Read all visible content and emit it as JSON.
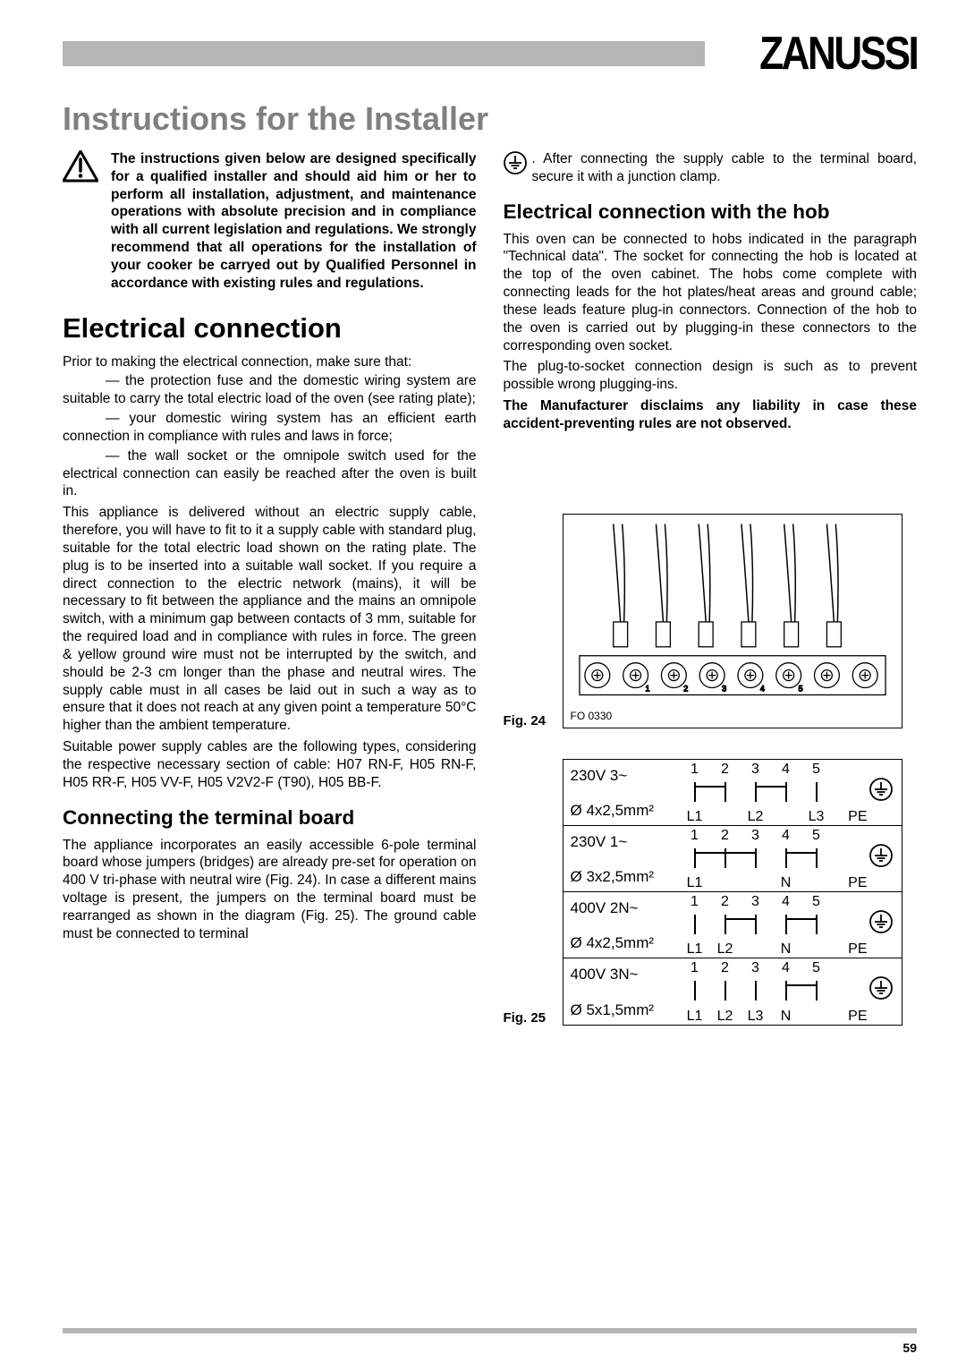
{
  "brand": "ZANUSSI",
  "main_title": "Instructions for the Installer",
  "warning_text": "The instructions given below are designed specifically for a qualified installer and should aid him or her to perform all installation, adjustment, and maintenance operations with absolute precision and in compliance with all current legislation and regulations. We strongly recommend that all operations for the installation of your cooker be carryed out by Qualified Personnel in accordance with existing rules and regulations.",
  "sec_elec_conn": "Electrical connection",
  "p_prior": "Prior to making the electrical connection, make sure that:",
  "p_fuse": "—   the protection fuse and the domestic wiring system are suitable to carry the total electric load of the oven (see rating plate);",
  "p_earth": "—   your domestic wiring system has an efficient earth connection in compliance with rules and laws in force;",
  "p_socket": "—   the wall socket or the omnipole switch used for the electrical connection can easily be reached after the oven is built in.",
  "p_appliance": "This appliance is delivered without an electric supply cable, therefore, you will have to fit to it a supply cable with standard plug, suitable for the total electric load shown on the rating plate. The plug is to be inserted into a suitable wall socket. If you require a direct connection to the electric network (mains), it will be necessary to fit between the appliance and the mains an omnipole switch, with a minimum gap between contacts of 3 mm, suitable for the required load and in compliance with rules in force. The green & yellow ground wire must not be interrupted by the switch, and should be 2-3 cm longer than the phase and neutral wires. The supply cable must in all cases be laid out in such a way as to ensure that it does not reach at any given point a temperature 50°C higher than the ambient temperature.",
  "p_cables": "Suitable power supply cables are the following types, considering the respective necessary section of cable: H07 RN-F, H05 RN-F, H05 RR-F, H05 VV-F, H05 V2V2-F (T90), H05 BB-F.",
  "sub_terminal": "Connecting the terminal board",
  "p_terminal": "The appliance incorporates an easily accessible 6-pole terminal board whose jumpers (bridges) are already pre-set for operation on 400 V tri-phase with neutral wire (Fig. 24). In case a different mains voltage is present, the jumpers on the terminal board must be rearranged as shown in the diagram (Fig. 25). The ground cable must be connected to terminal",
  "p_ground_after": ". After connecting the supply cable to the terminal board, secure it with a junction clamp.",
  "sub_hob": "Electrical connection with the hob",
  "p_hob1": "This oven can be connected to hobs indicated in the paragraph \"Technical data\". The socket for connecting the hob is located at the top of the oven cabinet. The hobs come complete with connecting leads for the hot plates/heat areas and ground cable; these leads feature plug-in connectors. Connection of the hob to the oven is carried out by plugging-in these connectors to the corresponding oven socket.",
  "p_hob2": "The plug-to-socket connection design is such as to prevent possible wrong plugging-ins.",
  "p_disclaim": "The Manufacturer disclaims any liability in case these accident-preventing rules are not observed.",
  "fig24_label": "Fig. 24",
  "fig24_caption": "FO 0330",
  "fig25_label": "Fig. 25",
  "wiring": [
    {
      "voltage": "230V 3~",
      "cable": "Ø 4x2,5mm²",
      "labels": [
        "L1",
        "",
        "L2",
        "",
        "L3",
        "PE"
      ],
      "bridges": [
        [
          1,
          2
        ],
        [
          3,
          4
        ]
      ]
    },
    {
      "voltage": "230V 1~",
      "cable": "Ø 3x2,5mm²",
      "labels": [
        "L1",
        "",
        "",
        "N",
        "",
        "PE"
      ],
      "bridges": [
        [
          1,
          2,
          3
        ],
        [
          4,
          5
        ]
      ]
    },
    {
      "voltage": "400V 2N~",
      "cable": "Ø 4x2,5mm²",
      "labels": [
        "L1",
        "L2",
        "",
        "N",
        "",
        "PE"
      ],
      "bridges": [
        [
          2,
          3
        ],
        [
          4,
          5
        ]
      ]
    },
    {
      "voltage": "400V 3N~",
      "cable": "Ø 5x1,5mm²",
      "labels": [
        "L1",
        "L2",
        "L3",
        "N",
        "",
        "PE"
      ],
      "bridges": [
        [
          4,
          5
        ]
      ]
    }
  ],
  "page_number": "59",
  "colors": {
    "grey_bar": "#b5b5b5",
    "title_grey": "#808080",
    "text": "#000000",
    "background": "#ffffff"
  }
}
